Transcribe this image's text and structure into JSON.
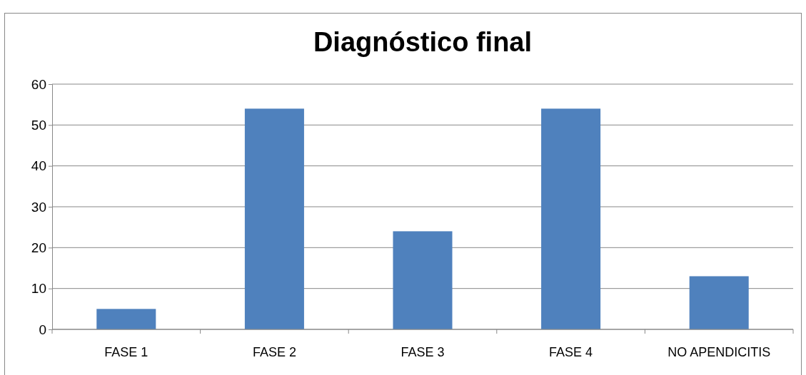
{
  "chart_data": {
    "type": "bar",
    "title": "Diagnóstico final",
    "categories": [
      "FASE 1",
      "FASE 2",
      "FASE 3",
      "FASE 4",
      "NO APENDICITIS"
    ],
    "values": [
      5,
      54,
      24,
      54,
      13
    ],
    "color": "#4f81bd",
    "ylim": [
      0,
      60
    ],
    "yticks": [
      0,
      10,
      20,
      30,
      40,
      50,
      60
    ],
    "grid": "y"
  }
}
